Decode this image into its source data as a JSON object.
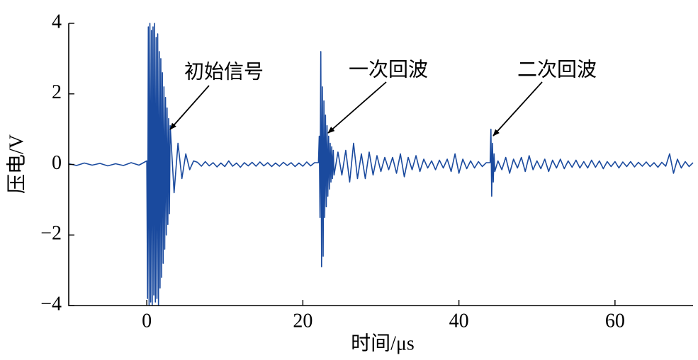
{
  "chart_data": {
    "type": "line",
    "x_label": "时间/μs",
    "y_label": "压电/V",
    "annotations": [
      "初始信号",
      "一次回波",
      "二次回波"
    ],
    "color": "#1a4a9e",
    "xlim": [
      -10,
      70
    ],
    "ylim": [
      -4,
      4
    ],
    "xticks": [
      0,
      20,
      40,
      60
    ],
    "yticks": [
      4,
      2,
      0,
      {
        "value": -2,
        "label": "−2"
      },
      {
        "value": -4,
        "label": "−4"
      }
    ],
    "x": [
      -10,
      -9,
      -8,
      -7,
      -6,
      -5,
      -4,
      -3,
      -2,
      -1,
      0,
      0.1,
      0.2,
      0.3,
      0.4,
      0.5,
      0.6,
      0.7,
      0.8,
      0.9,
      1,
      1.1,
      1.2,
      1.3,
      1.4,
      1.5,
      1.6,
      1.7,
      1.8,
      1.9,
      2,
      2.1,
      2.2,
      2.3,
      2.4,
      2.5,
      2.6,
      2.7,
      2.8,
      2.9,
      3,
      3.5,
      4,
      4.5,
      5,
      5.5,
      6,
      6.5,
      7,
      7.5,
      8,
      8.5,
      9,
      9.5,
      10,
      10.5,
      11,
      11.5,
      12,
      12.5,
      13,
      13.5,
      14,
      14.5,
      15,
      15.5,
      16,
      16.5,
      17,
      17.5,
      18,
      18.5,
      19,
      19.5,
      20,
      20.5,
      21,
      21.5,
      22,
      22.1,
      22.2,
      22.3,
      22.4,
      22.5,
      22.6,
      22.7,
      22.8,
      22.9,
      23,
      23.1,
      23.2,
      23.3,
      23.4,
      23.5,
      23.6,
      23.7,
      23.8,
      23.9,
      24,
      24.5,
      25,
      25.5,
      26,
      26.5,
      27,
      27.5,
      28,
      28.5,
      29,
      29.5,
      30,
      30.5,
      31,
      31.5,
      32,
      32.5,
      33,
      33.5,
      34,
      34.5,
      35,
      35.5,
      36,
      36.5,
      37,
      37.5,
      38,
      38.5,
      39,
      39.5,
      40,
      40.5,
      41,
      41.5,
      42,
      42.5,
      43,
      43.5,
      44,
      44.1,
      44.2,
      44.3,
      44.4,
      44.5,
      44.6,
      45,
      45.5,
      46,
      46.5,
      47,
      47.5,
      48,
      48.5,
      49,
      49.5,
      50,
      50.5,
      51,
      51.5,
      52,
      52.5,
      53,
      53.5,
      54,
      54.5,
      55,
      55.5,
      56,
      56.5,
      57,
      57.5,
      58,
      58.5,
      59,
      59.5,
      60,
      60.5,
      61,
      61.5,
      62,
      62.5,
      63,
      63.5,
      64,
      64.5,
      65,
      65.5,
      66,
      66.5,
      67,
      67.5,
      68,
      68.5,
      69,
      69.5,
      70
    ],
    "values": [
      0.02,
      -0.03,
      0.04,
      -0.02,
      0.03,
      -0.04,
      0.02,
      -0.03,
      0.05,
      -0.02,
      0.1,
      -3.8,
      3.9,
      -4,
      4,
      -3.9,
      3.8,
      -4,
      3.9,
      -3.7,
      4,
      -3.9,
      3.6,
      -3.8,
      3.7,
      -4,
      3.2,
      -3.5,
      3,
      -3.2,
      2.6,
      -2.8,
      2.2,
      -2.4,
      1.9,
      -2,
      1.6,
      -1.7,
      1.3,
      -1.4,
      1.1,
      -0.8,
      0.6,
      -0.4,
      0.3,
      -0.15,
      0.1,
      0.06,
      -0.05,
      0.08,
      -0.04,
      0.05,
      -0.07,
      0.04,
      -0.06,
      0.1,
      -0.05,
      0.04,
      -0.08,
      0.05,
      -0.04,
      0.06,
      -0.05,
      0.07,
      -0.04,
      0.05,
      -0.06,
      0.04,
      -0.05,
      0.06,
      -0.03,
      0.05,
      -0.06,
      0.04,
      -0.05,
      0.07,
      -0.04,
      0.05,
      0.05,
      0.8,
      -1.5,
      3.2,
      -2.9,
      2.2,
      -2.6,
      1.8,
      -1.5,
      1.4,
      -1.2,
      1.1,
      -0.9,
      0.8,
      -0.7,
      0.6,
      -0.5,
      0.5,
      -0.4,
      0.4,
      -0.3,
      0.35,
      -0.3,
      0.4,
      -0.5,
      0.6,
      -0.4,
      0.3,
      -0.4,
      0.35,
      -0.3,
      0.25,
      -0.2,
      0.2,
      -0.15,
      0.2,
      -0.25,
      0.3,
      -0.35,
      0.2,
      -0.15,
      0.25,
      -0.2,
      0.15,
      -0.1,
      0.1,
      -0.15,
      0.12,
      -0.1,
      0.15,
      -0.2,
      0.3,
      -0.25,
      0.15,
      -0.12,
      0.1,
      -0.1,
      0.08,
      -0.06,
      0.05,
      0.05,
      1.0,
      -0.9,
      0.6,
      -0.5,
      0.3,
      -0.2,
      0.1,
      -0.15,
      0.2,
      -0.25,
      0.15,
      -0.1,
      0.2,
      -0.2,
      0.25,
      -0.15,
      0.1,
      -0.12,
      0.15,
      -0.2,
      0.12,
      -0.1,
      0.15,
      -0.12,
      0.1,
      -0.08,
      0.12,
      -0.1,
      0.08,
      -0.1,
      0.12,
      -0.08,
      0.1,
      -0.12,
      0.08,
      -0.06,
      0.08,
      -0.1,
      0.07,
      -0.06,
      0.08,
      -0.07,
      0.06,
      -0.05,
      0.07,
      -0.06,
      0.05,
      -0.08,
      0.06,
      -0.05,
      0.3,
      -0.25,
      0.15,
      -0.1,
      0.08,
      -0.06,
      0.05
    ]
  }
}
